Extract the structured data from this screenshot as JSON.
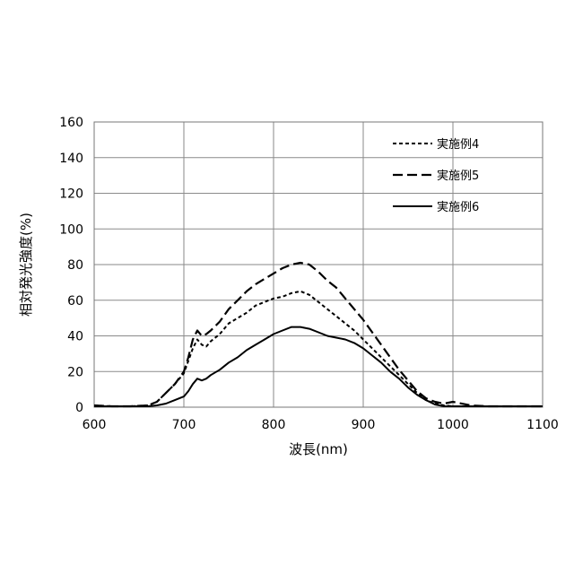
{
  "chart_data": {
    "type": "line",
    "xlabel": "波長(nm)",
    "ylabel": "相対発光強度(%)",
    "xlim": [
      600,
      1100
    ],
    "ylim": [
      0,
      160
    ],
    "xticks": [
      600,
      700,
      800,
      900,
      1000,
      1100
    ],
    "yticks": [
      0,
      20,
      40,
      60,
      80,
      100,
      120,
      140,
      160
    ],
    "grid": true,
    "legend_position": "top-right",
    "series": [
      {
        "name": "実施例4",
        "style": "dotted",
        "color": "#000000",
        "x": [
          600,
          620,
          640,
          660,
          670,
          680,
          690,
          700,
          705,
          710,
          715,
          720,
          725,
          730,
          740,
          750,
          760,
          770,
          780,
          790,
          800,
          810,
          820,
          830,
          840,
          850,
          860,
          870,
          880,
          890,
          900,
          910,
          920,
          930,
          940,
          950,
          960,
          970,
          980,
          990,
          1000,
          1020,
          1040,
          1060,
          1080,
          1100
        ],
        "y": [
          1,
          0.5,
          0.5,
          1,
          3,
          8,
          13,
          19,
          26,
          33,
          38,
          35,
          34,
          37,
          41,
          47,
          50,
          53,
          57,
          59,
          61,
          62,
          64,
          65,
          63,
          59,
          55,
          51,
          47,
          43,
          38,
          33,
          28,
          23,
          18,
          13,
          8,
          4,
          2,
          1,
          0.5,
          0.5,
          0.5,
          0.5,
          0.5,
          0.5
        ]
      },
      {
        "name": "実施例5",
        "style": "dashed",
        "color": "#000000",
        "x": [
          600,
          620,
          640,
          660,
          670,
          680,
          690,
          700,
          705,
          710,
          715,
          720,
          725,
          730,
          740,
          750,
          760,
          770,
          780,
          790,
          800,
          810,
          820,
          830,
          840,
          850,
          860,
          870,
          880,
          890,
          900,
          910,
          920,
          930,
          940,
          950,
          960,
          970,
          980,
          990,
          1000,
          1020,
          1040,
          1060,
          1080,
          1100
        ],
        "y": [
          1,
          0.5,
          0.5,
          1,
          3,
          8,
          13,
          20,
          28,
          38,
          43,
          40,
          41,
          43,
          48,
          55,
          60,
          65,
          69,
          72,
          75,
          78,
          80,
          81,
          80,
          76,
          71,
          67,
          61,
          55,
          49,
          42,
          35,
          28,
          21,
          15,
          9,
          5,
          3,
          2,
          3,
          1,
          0.5,
          0.5,
          0.5,
          0.5
        ]
      },
      {
        "name": "実施例6",
        "style": "solid",
        "color": "#000000",
        "x": [
          600,
          620,
          640,
          660,
          670,
          680,
          690,
          700,
          705,
          710,
          715,
          720,
          725,
          730,
          740,
          750,
          760,
          770,
          780,
          790,
          800,
          810,
          820,
          830,
          840,
          850,
          860,
          870,
          880,
          890,
          900,
          910,
          920,
          930,
          940,
          950,
          960,
          970,
          980,
          990,
          1000,
          1020,
          1040,
          1060,
          1080,
          1100
        ],
        "y": [
          0.5,
          0.5,
          0.5,
          0.5,
          1,
          2,
          4,
          6,
          9,
          13,
          16,
          15,
          16,
          18,
          21,
          25,
          28,
          32,
          35,
          38,
          41,
          43,
          45,
          45,
          44,
          42,
          40,
          39,
          38,
          36,
          33,
          29,
          25,
          20,
          16,
          11,
          7,
          4,
          1.5,
          0.5,
          0.5,
          0.5,
          0.5,
          0.5,
          0.5,
          0.5
        ]
      }
    ]
  }
}
